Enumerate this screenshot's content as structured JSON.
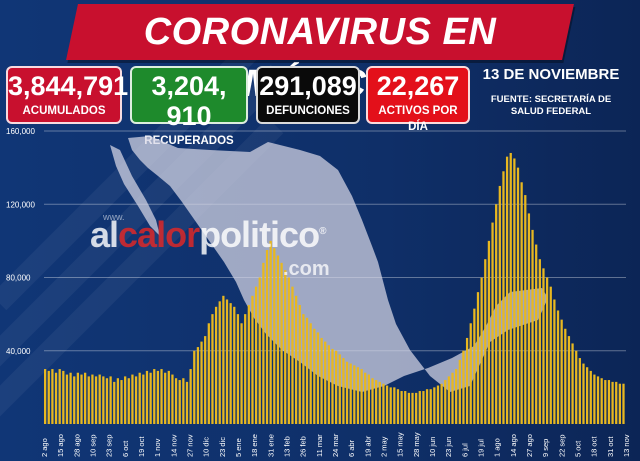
{
  "title": "CORONAVIRUS EN MÉXICO",
  "stats": [
    {
      "value": "3,844,791",
      "label": "ACUMULADOS",
      "color": "#c8102e"
    },
    {
      "value": "3,204, 910",
      "label": "RECUPERADOS",
      "color": "#1e8a2c"
    },
    {
      "value": "291,089",
      "label": "DEFUNCIONES",
      "color": "#0a0a0a"
    },
    {
      "value": "22,267",
      "label": "ACTIVOS POR DÍA",
      "color": "#e3101a"
    }
  ],
  "date": "13 DE NOVIEMBRE",
  "source": "FUENTE: SECRETARÍA DE SALUD FEDERAL",
  "watermark": {
    "www": "www.",
    "main_white": "al",
    "main_red": "calor",
    "main_rest": "politico",
    "reg": "®",
    "com": ".com"
  },
  "chart_data": {
    "type": "bar",
    "ylim": [
      0,
      160000
    ],
    "yticks": [
      "160,000",
      "120,000",
      "80,000",
      "40,000"
    ],
    "ytick_values": [
      160000,
      120000,
      80000,
      40000
    ],
    "xticks": [
      "2 ago",
      "15 ago",
      "28 ago",
      "10 sep",
      "23 sep",
      "6 oct",
      "19 oct",
      "1 nov",
      "14 nov",
      "27 nov",
      "10 dic",
      "23 dic",
      "5 ene",
      "18 ene",
      "31 ene",
      "13 feb",
      "26 feb",
      "11 mar",
      "24 mar",
      "6 abr",
      "19 abr",
      "2 may",
      "15 may",
      "28 may",
      "10 jun",
      "23 jun",
      "6 jul",
      "19 jul",
      "1 ago",
      "14 ago",
      "27 ago",
      "9 sep",
      "22 sep",
      "5 oct",
      "18 oct",
      "31 oct",
      "13 nov"
    ],
    "bar_color": "#e8b820",
    "series": [
      {
        "values": [
          30000,
          29000,
          30000,
          28000,
          30000,
          29000,
          27000,
          28000,
          26000,
          28000,
          27000,
          28000,
          26000,
          27000,
          26000,
          27000,
          26000,
          25000,
          26000,
          23000,
          25000,
          24000,
          26000,
          25000,
          27000,
          26000,
          28000,
          27000,
          29000,
          28000,
          30000,
          29000,
          30000,
          28000,
          29000,
          27000,
          25000,
          24000,
          25000,
          23000,
          30000,
          40000,
          42000,
          45000,
          48000,
          55000,
          60000,
          64000,
          67000,
          70000,
          68000,
          66000,
          64000,
          60000,
          55000,
          60000,
          65000,
          70000,
          75000,
          80000,
          88000,
          95000,
          100000,
          96000,
          92000,
          88000,
          84000,
          80000,
          75000,
          70000,
          65000,
          60000,
          58000,
          55000,
          52000,
          50000,
          47000,
          45000,
          43000,
          41000,
          40000,
          38000,
          36000,
          34000,
          33000,
          32000,
          31000,
          30000,
          28000,
          27000,
          25000,
          24000,
          23000,
          22000,
          21000,
          20000,
          20000,
          19000,
          18000,
          18000,
          17000,
          17000,
          17000,
          18000,
          18000,
          19000,
          19000,
          20000,
          21000,
          22000,
          24000,
          26000,
          28000,
          30000,
          35000,
          40000,
          47000,
          55000,
          63000,
          72000,
          80000,
          90000,
          100000,
          110000,
          120000,
          130000,
          138000,
          146000,
          148000,
          145000,
          140000,
          132000,
          125000,
          115000,
          106000,
          98000,
          90000,
          85000,
          80000,
          75000,
          68000,
          62000,
          57000,
          52000,
          48000,
          44000,
          40000,
          36000,
          33000,
          31000,
          29000,
          27000,
          26000,
          25000,
          24000,
          24000,
          23000,
          23000,
          22000,
          22000
        ]
      }
    ]
  }
}
